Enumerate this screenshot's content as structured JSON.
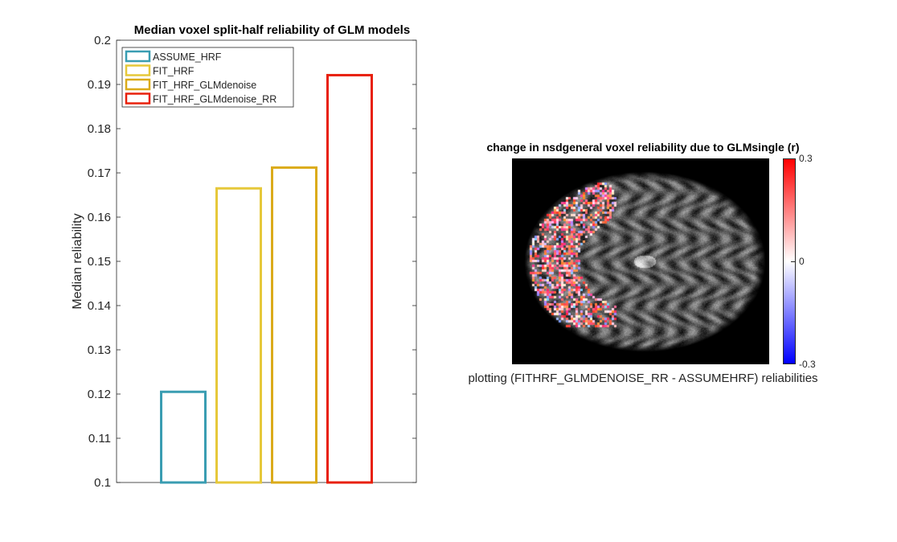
{
  "chart_data": [
    {
      "type": "bar",
      "title": "Median voxel split-half reliability of GLM models",
      "xlabel": "",
      "ylabel": "Median reliability",
      "ylim": [
        0.1,
        0.2
      ],
      "yticks": [
        "0.1",
        "0.11",
        "0.12",
        "0.13",
        "0.14",
        "0.15",
        "0.16",
        "0.17",
        "0.18",
        "0.19",
        "0.2"
      ],
      "categories": [
        "ASSUME_HRF",
        "FIT_HRF",
        "FIT_HRF_GLMdenoise",
        "FIT_HRF_GLMdenoise_RR"
      ],
      "values": [
        0.1205,
        0.1665,
        0.1712,
        0.1921
      ],
      "colors": [
        "#3a9db2",
        "#e6c83a",
        "#dbab1a",
        "#e8200c"
      ],
      "fill": "none",
      "grid": false,
      "legend_position": "top-left"
    },
    {
      "type": "heatmap",
      "title": "change in nsdgeneral voxel reliability due to GLMsingle (r)",
      "xlabel": "plotting (FITHRF_GLMDENOISE_RR - ASSUMEHRF) reliabilities",
      "colorbar": {
        "range": [
          -0.3,
          0.3
        ],
        "ticks": [
          "0.3",
          "0",
          "-0.3"
        ],
        "colormap": [
          "#0000ff",
          "#ffffff",
          "#ff0000"
        ]
      }
    }
  ]
}
